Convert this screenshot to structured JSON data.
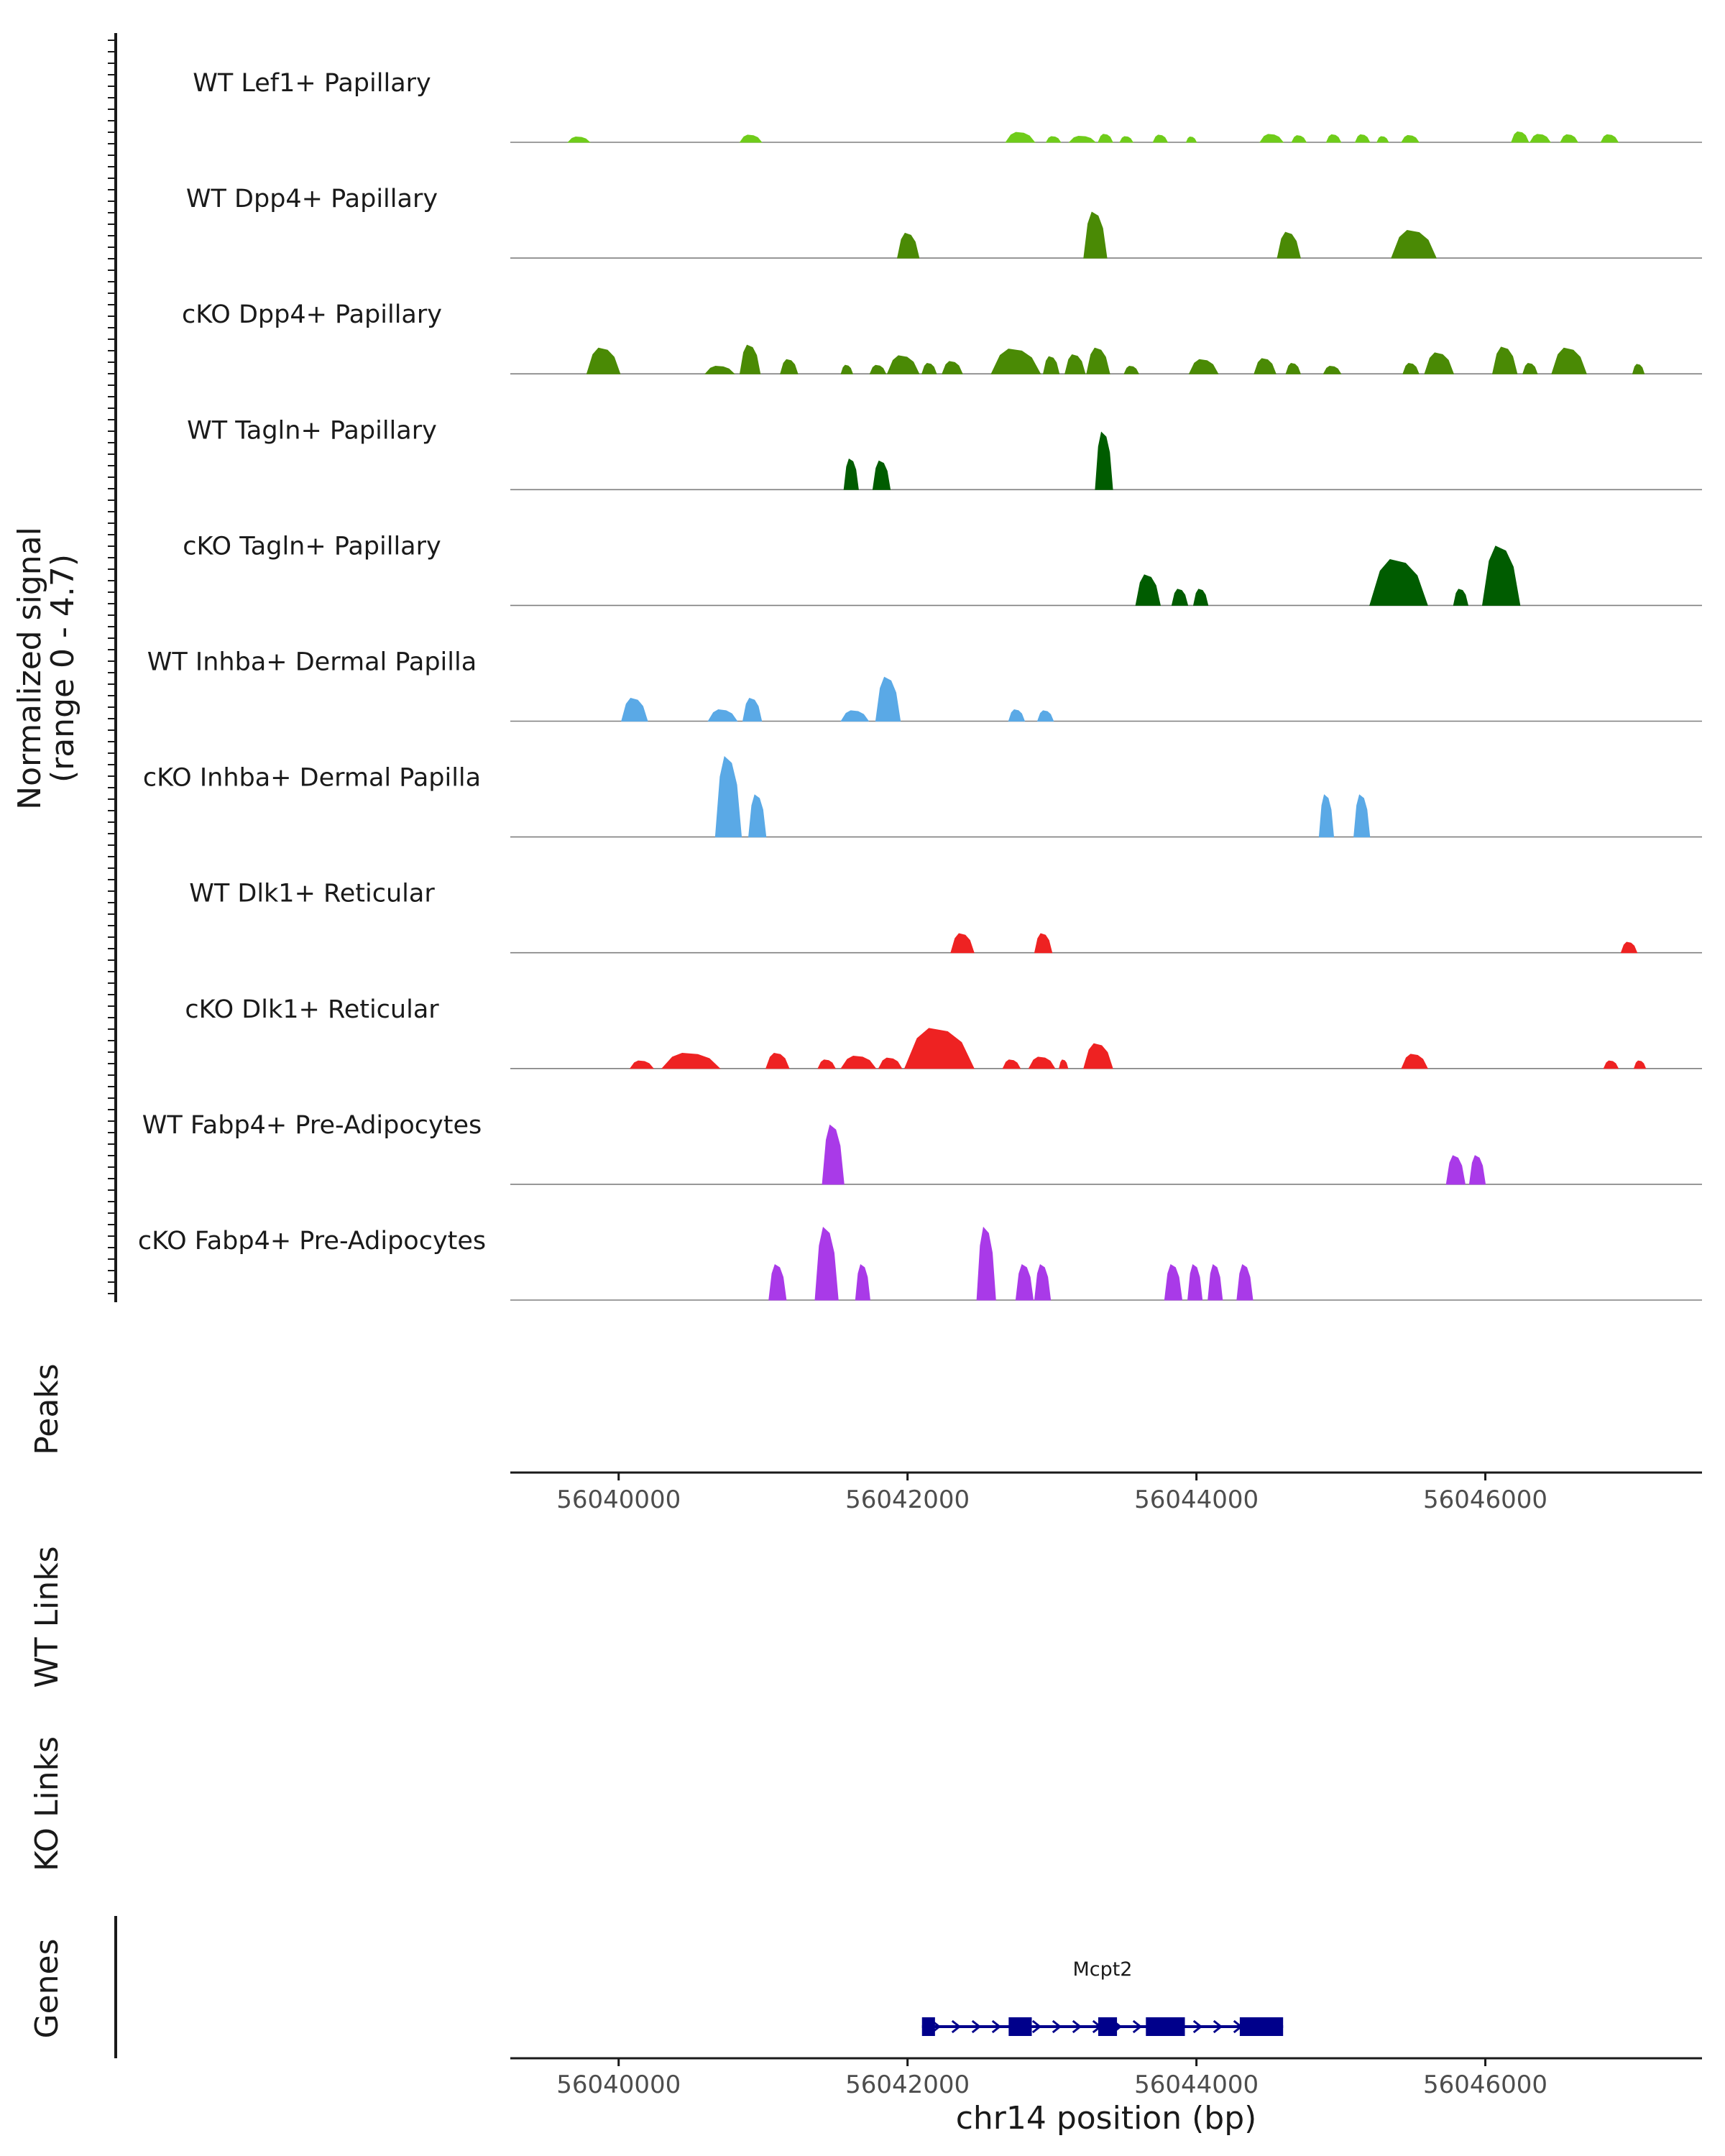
{
  "chart_data": {
    "type": "area",
    "title": "",
    "chromosome": "chr14",
    "xlabel": "chr14 position (bp)",
    "xlim": [
      56039250,
      56047500
    ],
    "xticks": [
      56040000,
      56042000,
      56044000,
      56046000
    ],
    "xtick_labels": [
      "56040000",
      "56042000",
      "56044000",
      "56046000"
    ],
    "signal_axis": {
      "label_line1": "Normalized signal",
      "label_line2": "(range 0 - 4.7)",
      "range": [
        0,
        4.7
      ]
    },
    "side_panels": {
      "peaks": "Peaks",
      "wt_links": "WT Links",
      "ko_links": "KO Links",
      "genes": "Genes"
    },
    "tracks": [
      {
        "name": "WT Lef1+ Papillary",
        "color": "#6fcc1a",
        "regions": [
          [
            56039650,
            56039800,
            0.28
          ],
          [
            56040840,
            56040990,
            0.38
          ],
          [
            56042680,
            56042880,
            0.52
          ],
          [
            56042960,
            56043060,
            0.3
          ],
          [
            56043120,
            56043300,
            0.32
          ],
          [
            56043320,
            56043420,
            0.42
          ],
          [
            56043470,
            56043560,
            0.3
          ],
          [
            56043700,
            56043800,
            0.38
          ],
          [
            56043930,
            56044000,
            0.28
          ],
          [
            56044440,
            56044600,
            0.42
          ],
          [
            56044660,
            56044760,
            0.35
          ],
          [
            56044900,
            56045000,
            0.4
          ],
          [
            56045100,
            56045200,
            0.4
          ],
          [
            56045250,
            56045330,
            0.3
          ],
          [
            56045420,
            56045540,
            0.36
          ],
          [
            56046180,
            56046300,
            0.55
          ],
          [
            56046310,
            56046450,
            0.42
          ],
          [
            56046520,
            56046640,
            0.4
          ],
          [
            56046800,
            56046920,
            0.4
          ]
        ]
      },
      {
        "name": "WT Dpp4+ Papillary",
        "color": "#4a8a05",
        "regions": [
          [
            56041930,
            56042080,
            1.3
          ],
          [
            56043220,
            56043380,
            2.4
          ],
          [
            56044560,
            56044720,
            1.35
          ],
          [
            56045350,
            56045660,
            1.45
          ]
        ]
      },
      {
        "name": "cKO Dpp4+ Papillary",
        "color": "#4a8a05",
        "regions": [
          [
            56039780,
            56040010,
            1.35
          ],
          [
            56040600,
            56040800,
            0.4
          ],
          [
            56040840,
            56040980,
            1.5
          ],
          [
            56041120,
            56041240,
            0.75
          ],
          [
            56041540,
            56041620,
            0.45
          ],
          [
            56041740,
            56041850,
            0.45
          ],
          [
            56041860,
            56042080,
            0.95
          ],
          [
            56042100,
            56042200,
            0.55
          ],
          [
            56042240,
            56042380,
            0.65
          ],
          [
            56042580,
            56042920,
            1.3
          ],
          [
            56042940,
            56043050,
            0.9
          ],
          [
            56043090,
            56043230,
            1.0
          ],
          [
            56043240,
            56043400,
            1.35
          ],
          [
            56043500,
            56043600,
            0.4
          ],
          [
            56043950,
            56044150,
            0.75
          ],
          [
            56044400,
            56044550,
            0.8
          ],
          [
            56044620,
            56044720,
            0.55
          ],
          [
            56044880,
            56045000,
            0.4
          ],
          [
            56045430,
            56045540,
            0.55
          ],
          [
            56045580,
            56045780,
            1.1
          ],
          [
            56046050,
            56046220,
            1.4
          ],
          [
            56046260,
            56046360,
            0.55
          ],
          [
            56046460,
            56046700,
            1.35
          ],
          [
            56047020,
            56047100,
            0.5
          ]
        ]
      },
      {
        "name": "WT Tagln+ Papillary",
        "color": "#005c00",
        "regions": [
          [
            56041560,
            56041660,
            1.6
          ],
          [
            56041760,
            56041880,
            1.5
          ],
          [
            56043300,
            56043420,
            3.0
          ]
        ]
      },
      {
        "name": "cKO Tagln+ Papillary",
        "color": "#005c00",
        "regions": [
          [
            56043580,
            56043750,
            1.6
          ],
          [
            56043830,
            56043940,
            0.85
          ],
          [
            56043980,
            56044080,
            0.85
          ],
          [
            56045200,
            56045600,
            2.4
          ],
          [
            56045780,
            56045880,
            0.85
          ],
          [
            56045980,
            56046240,
            3.1
          ]
        ]
      },
      {
        "name": "WT Inhba+ Dermal Papilla",
        "color": "#5aa9e6",
        "regions": [
          [
            56040020,
            56040200,
            1.2
          ],
          [
            56040620,
            56040820,
            0.6
          ],
          [
            56040860,
            56040990,
            1.2
          ],
          [
            56041540,
            56041730,
            0.55
          ],
          [
            56041780,
            56041950,
            2.3
          ],
          [
            56042700,
            56042810,
            0.6
          ],
          [
            56042900,
            56043010,
            0.55
          ]
        ]
      },
      {
        "name": "cKO Inhba+ Dermal Papilla",
        "color": "#5aa9e6",
        "regions": [
          [
            56040670,
            56040850,
            4.2
          ],
          [
            56040900,
            56041020,
            2.2
          ],
          [
            56044850,
            56044950,
            2.2
          ],
          [
            56045090,
            56045200,
            2.2
          ]
        ]
      },
      {
        "name": "WT Dlk1+ Reticular",
        "color": "#ee2222",
        "regions": [
          [
            56042300,
            56042460,
            1.0
          ],
          [
            56042880,
            56043000,
            1.0
          ],
          [
            56046940,
            56047050,
            0.55
          ]
        ]
      },
      {
        "name": "cKO Dlk1+ Reticular",
        "color": "#ee2222",
        "regions": [
          [
            56040080,
            56040240,
            0.4
          ],
          [
            56040300,
            56040700,
            0.8
          ],
          [
            56041020,
            56041180,
            0.8
          ],
          [
            56041380,
            56041500,
            0.45
          ],
          [
            56041540,
            56041780,
            0.65
          ],
          [
            56041800,
            56041960,
            0.55
          ],
          [
            56041980,
            56042460,
            2.1
          ],
          [
            56042660,
            56042780,
            0.45
          ],
          [
            56042840,
            56043020,
            0.6
          ],
          [
            56043050,
            56043110,
            0.45
          ],
          [
            56043220,
            56043420,
            1.3
          ],
          [
            56045420,
            56045600,
            0.75
          ],
          [
            56046820,
            56046920,
            0.4
          ],
          [
            56047030,
            56047110,
            0.4
          ]
        ]
      },
      {
        "name": "WT Fabp4+ Pre-Adipocytes",
        "color": "#a93ae8",
        "regions": [
          [
            56041410,
            56041560,
            3.1
          ],
          [
            56045730,
            56045860,
            1.5
          ],
          [
            56045890,
            56046000,
            1.5
          ]
        ]
      },
      {
        "name": "cKO Fabp4+ Pre-Adipocytes",
        "color": "#a93ae8",
        "regions": [
          [
            56041040,
            56041160,
            1.85
          ],
          [
            56041360,
            56041520,
            3.8
          ],
          [
            56041640,
            56041740,
            1.85
          ],
          [
            56042480,
            56042610,
            3.8
          ],
          [
            56042750,
            56042870,
            1.85
          ],
          [
            56042880,
            56042990,
            1.85
          ],
          [
            56043780,
            56043900,
            1.85
          ],
          [
            56043940,
            56044040,
            1.85
          ],
          [
            56044080,
            56044180,
            1.85
          ],
          [
            56044280,
            56044390,
            1.85
          ]
        ]
      }
    ],
    "gene": {
      "name": "Mcpt2",
      "start": 56042100,
      "end": 56044600,
      "strand": "+",
      "color": "#00008b",
      "exons": [
        [
          56042100,
          56042190
        ],
        [
          56042700,
          56042860
        ],
        [
          56043320,
          56043450
        ],
        [
          56043650,
          56043920
        ],
        [
          56044300,
          56044600
        ]
      ]
    }
  }
}
